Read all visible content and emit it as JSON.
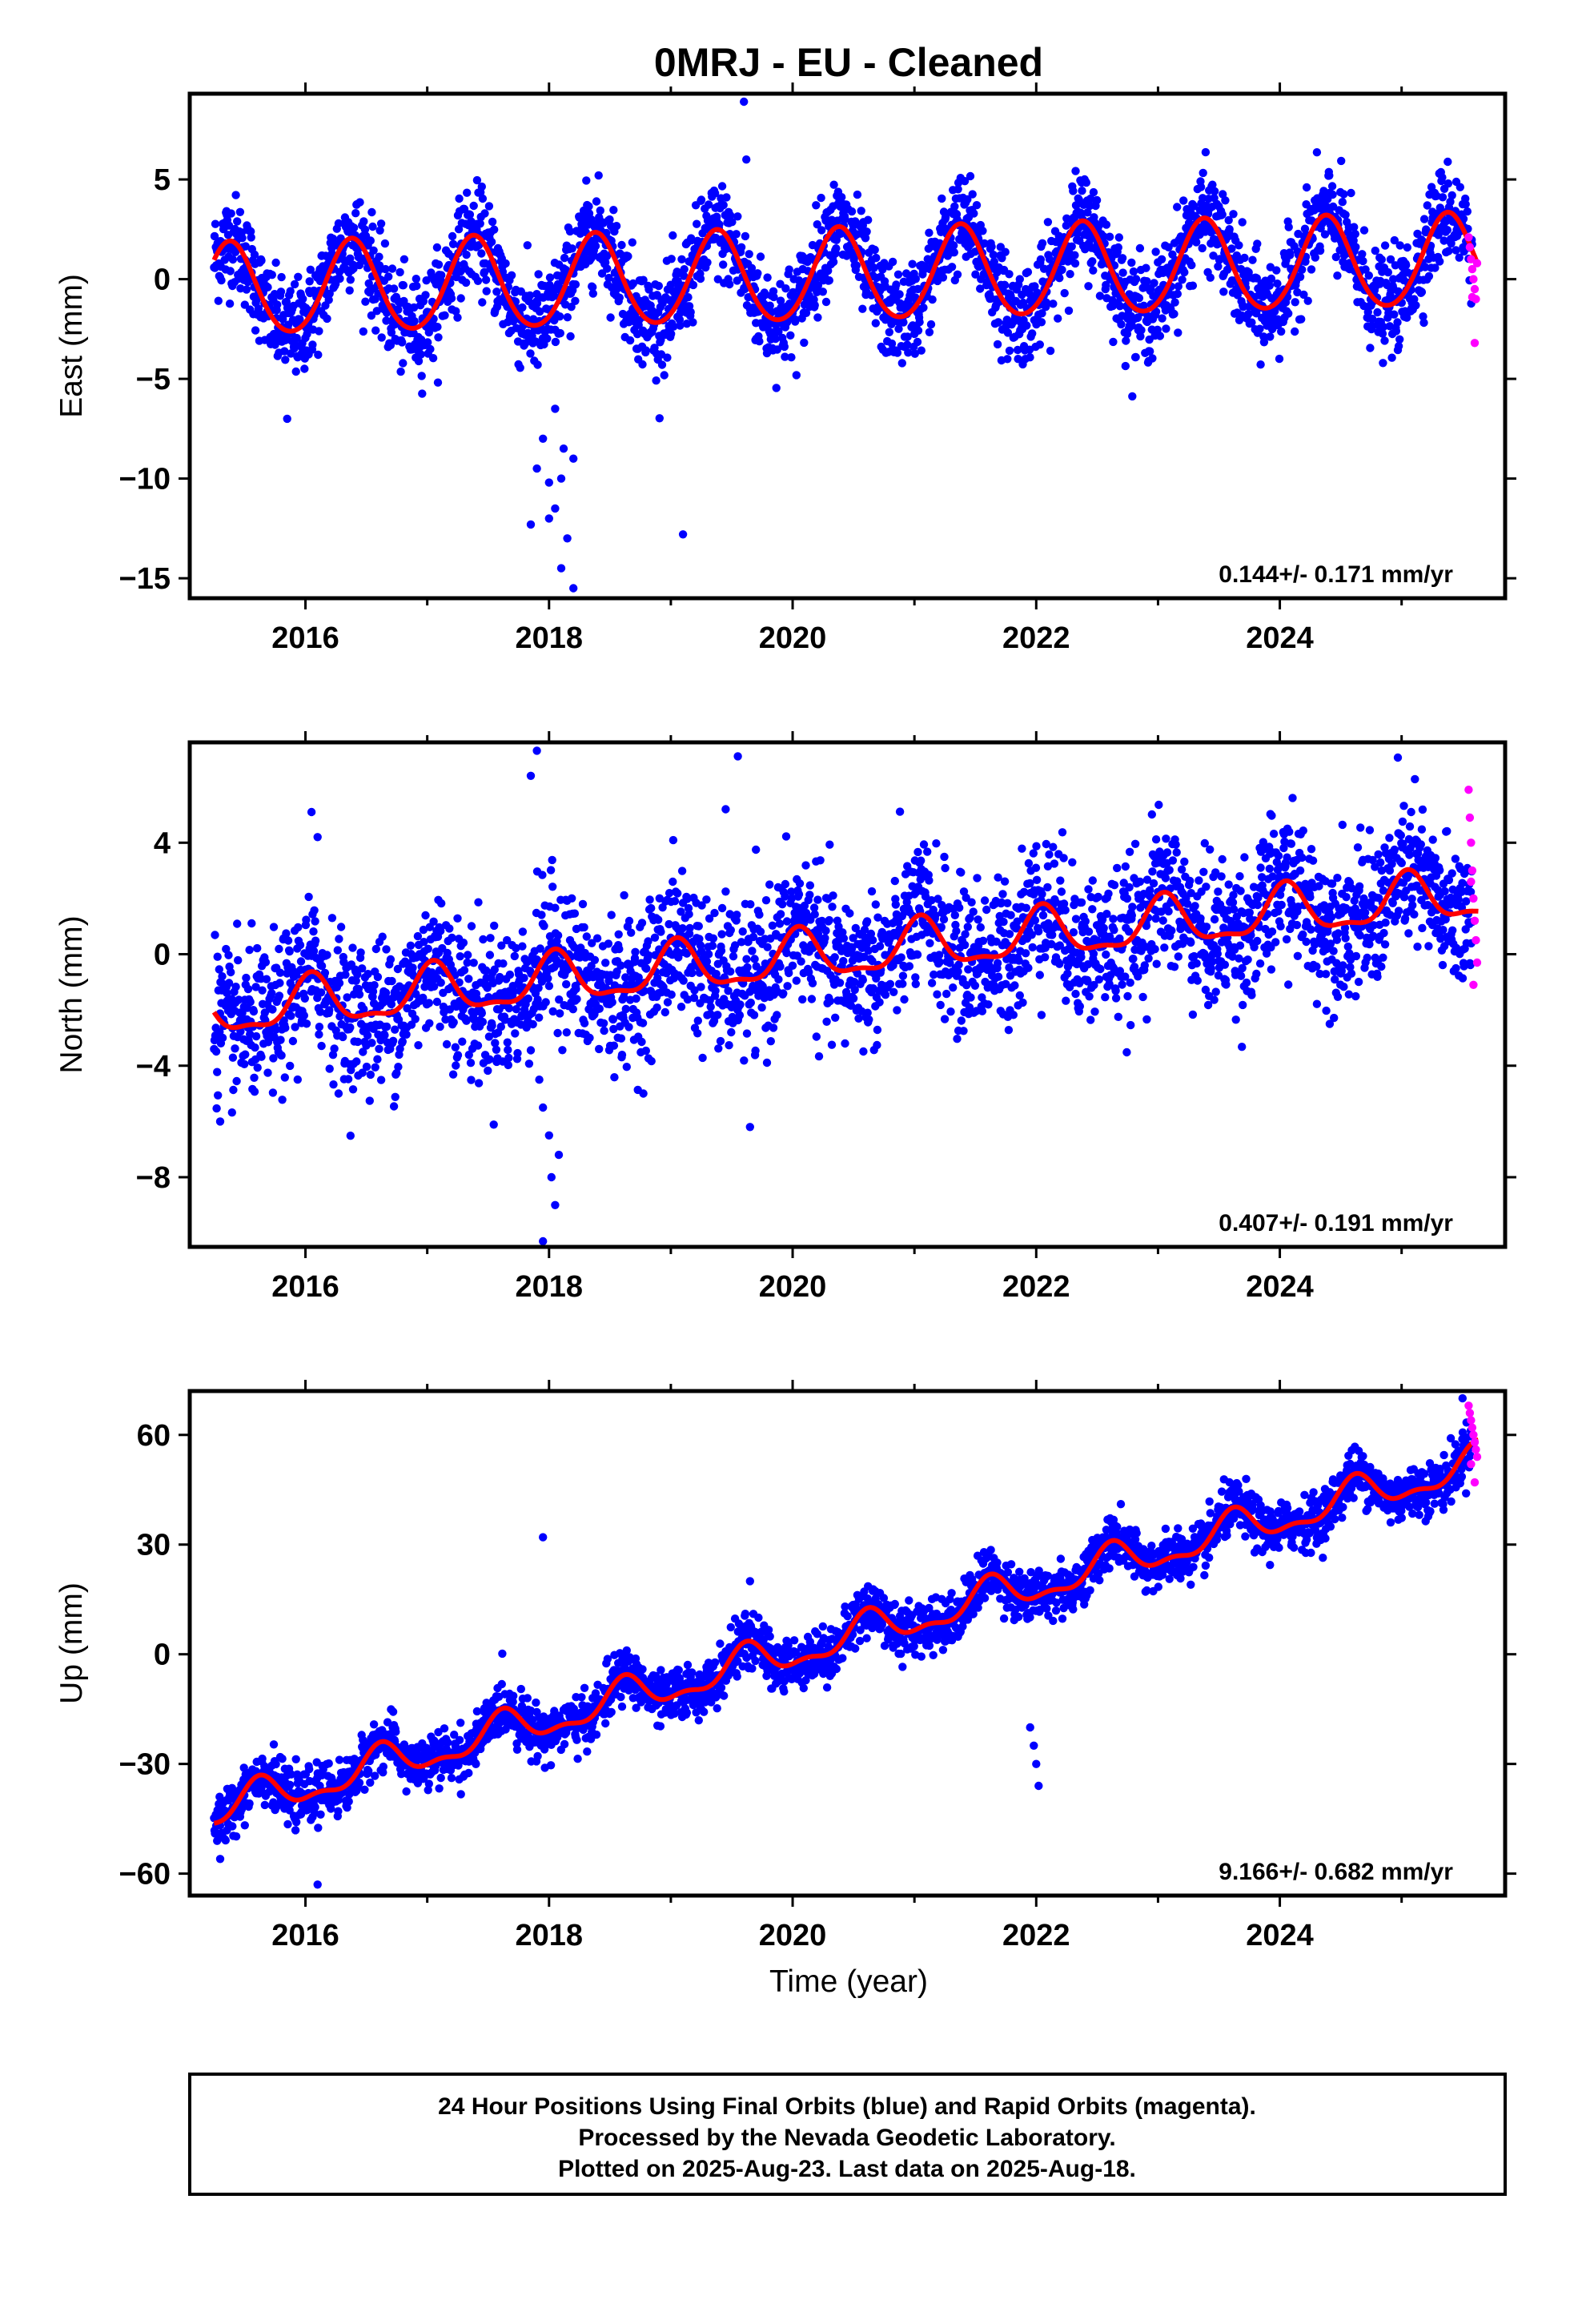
{
  "title": "0MRJ  - EU - Cleaned",
  "colors": {
    "final": "#0000ff",
    "rapid": "#ff00ff",
    "model": "#ff0000",
    "frame": "#000000"
  },
  "xlabel": "Time (year)",
  "footer": {
    "line1": "24 Hour Positions Using Final Orbits (blue) and Rapid Orbits (magenta).",
    "line2": "Processed by the Nevada Geodetic Laboratory.",
    "line3": "Plotted on 2025-Aug-23. Last data on 2025-Aug-18."
  },
  "chart_data": [
    {
      "type": "scatter",
      "ylabel": "East (mm)",
      "xlim": [
        2015.05,
        2025.85
      ],
      "ylim": [
        -16,
        9.3
      ],
      "xticks": [
        2016,
        2018,
        2020,
        2022,
        2024
      ],
      "yticks": [
        5,
        0,
        -5,
        -10,
        -15
      ],
      "rate": "0.144+/- 0.171 mm/yr",
      "data_span": [
        2015.25,
        2025.63
      ],
      "trend_mm_per_yr": 0.144,
      "offset_mm": -0.6,
      "annual_amp_mm": 2.3,
      "annual_peak": 0.38,
      "semiannual_amp_mm": 0.2,
      "scatter_sd_mm": 1.2,
      "final_series": {
        "name": "Final Orbits",
        "x": [
          2017.85,
          2017.95,
          2018.0,
          2018.05,
          2018.1,
          2018.15,
          2018.2,
          2018.0,
          2018.1,
          2018.2,
          2018.12,
          2017.9,
          2019.6,
          2019.62,
          2015.85,
          2018.05,
          2019.1
        ],
        "y": [
          -12.3,
          -8.0,
          -12.0,
          -11.5,
          -10.0,
          -13.0,
          -9.0,
          -10.2,
          -14.5,
          -15.5,
          -8.5,
          -9.5,
          8.9,
          6.0,
          -7.0,
          -6.5,
          -12.8
        ]
      },
      "rapid_series": {
        "name": "Rapid Orbits",
        "x": [
          2025.55,
          2025.56,
          2025.57,
          2025.58,
          2025.59,
          2025.6,
          2025.61,
          2025.62,
          2025.6,
          2025.58
        ],
        "y": [
          2.1,
          1.6,
          1.0,
          0.5,
          0.0,
          -0.5,
          -1.0,
          0.8,
          -3.2,
          -0.9
        ]
      }
    },
    {
      "type": "scatter",
      "ylabel": "North (mm)",
      "xlim": [
        2015.05,
        2025.85
      ],
      "ylim": [
        -10.5,
        7.6
      ],
      "xticks": [
        2016,
        2018,
        2020,
        2022,
        2024
      ],
      "yticks": [
        4,
        0,
        -4,
        -8
      ],
      "rate": "0.407+/- 0.191 mm/yr",
      "data_span": [
        2015.25,
        2025.63
      ],
      "trend_mm_per_yr": 0.407,
      "offset_mm": -2.1,
      "annual_amp_mm": 0.85,
      "annual_peak": 0.05,
      "semiannual_amp_mm": 0.3,
      "scatter_sd_mm": 1.3,
      "final_series": {
        "name": "Final Orbits",
        "x": [
          2017.85,
          2017.9,
          2017.95,
          2018.0,
          2018.02,
          2018.05,
          2018.08,
          2017.92,
          2017.95,
          2019.55,
          2019.65,
          2019.45,
          2016.05,
          2016.1,
          2015.3
        ],
        "y": [
          6.4,
          7.3,
          -10.3,
          -6.5,
          -8.0,
          -9.0,
          -7.2,
          -4.5,
          -5.5,
          7.1,
          -6.2,
          5.2,
          5.1,
          4.2,
          -6.0
        ]
      },
      "rapid_series": {
        "name": "Rapid Orbits",
        "x": [
          2025.55,
          2025.56,
          2025.57,
          2025.58,
          2025.59,
          2025.6,
          2025.61,
          2025.62,
          2025.59,
          2025.57
        ],
        "y": [
          5.9,
          4.9,
          4.0,
          3.0,
          2.0,
          1.2,
          0.5,
          -0.3,
          -1.1,
          2.6
        ]
      }
    },
    {
      "type": "scatter",
      "ylabel": "Up (mm)",
      "xlim": [
        2015.05,
        2025.85
      ],
      "ylim": [
        -66,
        72
      ],
      "xticks": [
        2016,
        2018,
        2020,
        2022,
        2024
      ],
      "yticks": [
        60,
        30,
        0,
        -30,
        -60
      ],
      "rate": "9.166+/- 0.682 mm/yr",
      "data_span": [
        2015.25,
        2025.63
      ],
      "trend_mm_per_yr": 9.166,
      "offset_mm": -43.0,
      "annual_amp_mm": 4.5,
      "annual_peak": 0.62,
      "semiannual_amp_mm": 2.0,
      "scatter_sd_mm": 3.5,
      "final_series": {
        "name": "Final Orbits",
        "x": [
          2017.95,
          2021.95,
          2021.98,
          2022.0,
          2022.02,
          2019.65,
          2025.5,
          2016.1,
          2015.3
        ],
        "y": [
          32,
          -20,
          -25,
          -30,
          -36,
          20,
          70,
          -63,
          -56
        ]
      },
      "rapid_series": {
        "name": "Rapid Orbits",
        "x": [
          2025.55,
          2025.56,
          2025.57,
          2025.58,
          2025.59,
          2025.6,
          2025.61,
          2025.62,
          2025.6,
          2025.57
        ],
        "y": [
          68,
          66,
          64,
          62,
          60,
          58,
          56,
          54,
          47,
          52
        ]
      }
    }
  ]
}
